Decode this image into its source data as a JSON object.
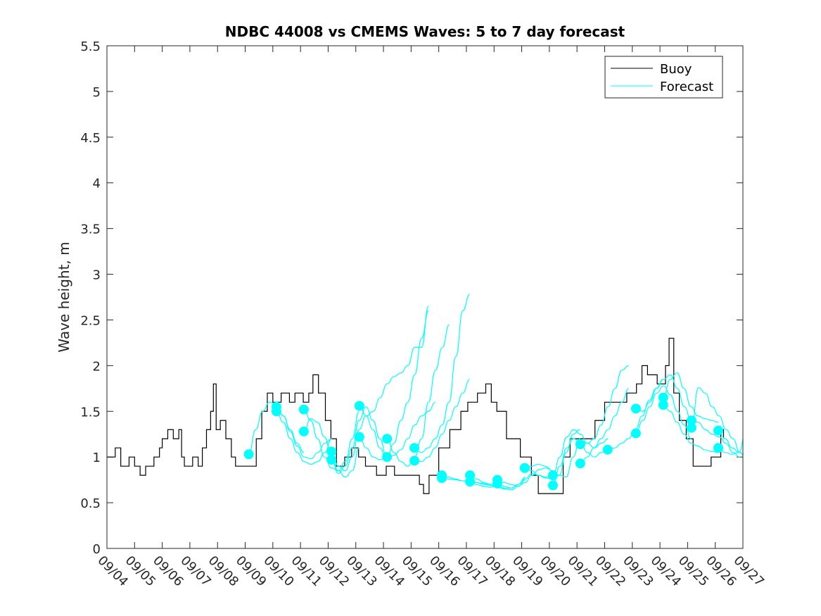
{
  "chart_data": {
    "type": "line",
    "title": "NDBC 44008 vs CMEMS Waves: 5 to 7 day forecast",
    "xlabel": "",
    "ylabel": "Wave height, m",
    "ylim": [
      0,
      5.5
    ],
    "yticks": [
      "0",
      "0.5",
      "1",
      "1.5",
      "2",
      "2.5",
      "3",
      "3.5",
      "4",
      "4.5",
      "5",
      "5.5"
    ],
    "xticks": [
      "09/04",
      "09/05",
      "09/06",
      "09/07",
      "09/08",
      "09/09",
      "09/10",
      "09/11",
      "09/12",
      "09/13",
      "09/14",
      "09/15",
      "09/16",
      "09/17",
      "09/18",
      "09/19",
      "09/20",
      "09/21",
      "09/22",
      "09/23",
      "09/24",
      "09/25",
      "09/26",
      "09/27"
    ],
    "x_unit": "days since 09/04",
    "legend": {
      "placement": "top-right",
      "entries": [
        "Buoy",
        "Forecast"
      ]
    },
    "colors": {
      "buoy": "#000000",
      "forecast": "#00ffff"
    },
    "buoy": [
      [
        0,
        1.0
      ],
      [
        0.3,
        1.1
      ],
      [
        0.5,
        0.9
      ],
      [
        0.8,
        1.0
      ],
      [
        1.0,
        0.9
      ],
      [
        1.2,
        0.8
      ],
      [
        1.4,
        0.9
      ],
      [
        1.7,
        1.0
      ],
      [
        1.9,
        1.1
      ],
      [
        2.0,
        1.2
      ],
      [
        2.2,
        1.3
      ],
      [
        2.4,
        1.2
      ],
      [
        2.6,
        1.3
      ],
      [
        2.7,
        1.0
      ],
      [
        2.8,
        0.9
      ],
      [
        3.1,
        1.0
      ],
      [
        3.3,
        0.9
      ],
      [
        3.45,
        1.1
      ],
      [
        3.6,
        1.3
      ],
      [
        3.75,
        1.5
      ],
      [
        3.85,
        1.8
      ],
      [
        3.95,
        1.3
      ],
      [
        4.1,
        1.4
      ],
      [
        4.3,
        1.2
      ],
      [
        4.5,
        1.0
      ],
      [
        4.65,
        0.9
      ],
      [
        5.3,
        0.9
      ],
      [
        5.4,
        1.2
      ],
      [
        5.6,
        1.5
      ],
      [
        5.8,
        1.7
      ],
      [
        6.0,
        1.6
      ],
      [
        6.3,
        1.7
      ],
      [
        6.6,
        1.6
      ],
      [
        6.8,
        1.7
      ],
      [
        7.1,
        1.6
      ],
      [
        7.3,
        1.7
      ],
      [
        7.45,
        1.9
      ],
      [
        7.65,
        1.7
      ],
      [
        7.9,
        1.4
      ],
      [
        8.1,
        1.2
      ],
      [
        8.3,
        0.9
      ],
      [
        8.6,
        1.0
      ],
      [
        8.85,
        1.1
      ],
      [
        9.1,
        1.0
      ],
      [
        9.35,
        0.9
      ],
      [
        9.75,
        0.8
      ],
      [
        10.1,
        0.9
      ],
      [
        10.4,
        0.8
      ],
      [
        10.9,
        0.8
      ],
      [
        11.3,
        0.7
      ],
      [
        11.45,
        0.6
      ],
      [
        11.65,
        0.8
      ],
      [
        12.0,
        1.1
      ],
      [
        12.4,
        1.3
      ],
      [
        12.8,
        1.5
      ],
      [
        13.05,
        1.6
      ],
      [
        13.4,
        1.7
      ],
      [
        13.7,
        1.8
      ],
      [
        13.9,
        1.6
      ],
      [
        14.1,
        1.5
      ],
      [
        14.45,
        1.2
      ],
      [
        14.95,
        1.0
      ],
      [
        15.35,
        0.8
      ],
      [
        15.6,
        0.6
      ],
      [
        16.35,
        0.6
      ],
      [
        16.5,
        1.0
      ],
      [
        16.75,
        1.2
      ],
      [
        17.25,
        1.2
      ],
      [
        17.65,
        1.4
      ],
      [
        18.0,
        1.6
      ],
      [
        18.4,
        1.6
      ],
      [
        18.8,
        1.7
      ],
      [
        19.15,
        1.8
      ],
      [
        19.35,
        2.0
      ],
      [
        19.55,
        1.9
      ],
      [
        19.9,
        1.8
      ],
      [
        20.2,
        2.0
      ],
      [
        20.33,
        2.3
      ],
      [
        20.5,
        1.7
      ],
      [
        20.7,
        1.4
      ],
      [
        20.95,
        1.2
      ],
      [
        21.2,
        0.9
      ],
      [
        21.6,
        0.9
      ],
      [
        21.85,
        1.0
      ],
      [
        22.2,
        1.3
      ],
      [
        22.3,
        1.2
      ]
    ],
    "forecast_step_days": 0.25,
    "forecasts": [
      {
        "start": 5.13,
        "values": [
          1.03,
          1.3,
          1.5,
          1.6,
          1.57,
          1.45,
          1.3,
          1.15,
          1.05
        ]
      },
      {
        "start": 6.13,
        "values": [
          1.55,
          1.45,
          1.28,
          1.12,
          1.0,
          0.98,
          1.05,
          1.15,
          1.2
        ]
      },
      {
        "start": 6.13,
        "values": [
          1.5,
          1.38,
          1.2,
          1.05,
          0.95,
          0.92,
          0.95,
          1.05,
          1.2
        ]
      },
      {
        "start": 7.12,
        "values": [
          1.52,
          1.4,
          1.2,
          1.0,
          0.88,
          0.85,
          0.95,
          1.2,
          1.5
        ]
      },
      {
        "start": 7.12,
        "values": [
          1.28,
          1.42,
          1.38,
          1.22,
          1.0,
          0.85,
          0.78,
          0.85,
          1.1
        ]
      },
      {
        "start": 8.12,
        "values": [
          1.06,
          0.9,
          0.85,
          1.0,
          1.3,
          1.45,
          1.3,
          1.1,
          0.95
        ]
      },
      {
        "start": 8.12,
        "values": [
          0.97,
          0.82,
          0.9,
          1.1,
          1.4,
          1.55,
          1.4,
          1.2,
          1.0
        ]
      },
      {
        "start": 9.13,
        "values": [
          1.56,
          1.45,
          1.5,
          1.65,
          1.8,
          1.88,
          1.92,
          2.0,
          2.2,
          2.2,
          2.65
        ]
      },
      {
        "start": 9.13,
        "values": [
          1.22,
          1.1,
          1.0,
          0.97,
          1.0,
          1.15,
          1.4,
          1.6,
          1.9,
          2.3,
          2.6
        ]
      },
      {
        "start": 10.13,
        "values": [
          1.2,
          1.05,
          0.95,
          0.9,
          1.0,
          1.2,
          1.6,
          1.95,
          2.2,
          2.45
        ]
      },
      {
        "start": 10.13,
        "values": [
          1.0,
          1.02,
          1.08,
          1.2,
          1.35,
          1.45,
          1.5,
          1.6
        ]
      },
      {
        "start": 11.12,
        "values": [
          1.1,
          1.05,
          1.1,
          1.2,
          1.35,
          1.6,
          2.1,
          2.6,
          2.78
        ]
      },
      {
        "start": 11.12,
        "values": [
          0.96,
          0.95,
          1.0,
          1.1,
          1.25,
          1.4,
          1.55,
          1.7,
          1.85
        ]
      },
      {
        "start": 12.11,
        "values": [
          0.8,
          0.78,
          0.76,
          0.74,
          0.72,
          0.7,
          0.68,
          0.67,
          0.68
        ]
      },
      {
        "start": 12.11,
        "values": [
          0.77,
          0.76,
          0.75,
          0.74,
          0.73,
          0.72,
          0.71,
          0.7,
          0.7
        ]
      },
      {
        "start": 13.13,
        "values": [
          0.8,
          0.76,
          0.72,
          0.7,
          0.68,
          0.66,
          0.66,
          0.7,
          0.78
        ]
      },
      {
        "start": 13.13,
        "values": [
          0.73,
          0.72,
          0.7,
          0.69,
          0.67,
          0.65,
          0.64,
          0.68,
          0.75
        ]
      },
      {
        "start": 14.12,
        "values": [
          0.75,
          0.72,
          0.7,
          0.68,
          0.72,
          0.8,
          0.86,
          0.88,
          0.85
        ]
      },
      {
        "start": 14.12,
        "values": [
          0.71,
          0.68,
          0.66,
          0.7,
          0.76,
          0.82,
          0.8,
          0.78,
          0.8
        ]
      },
      {
        "start": 15.11,
        "values": [
          0.88,
          0.85,
          0.8,
          0.77,
          0.76,
          0.8,
          1.05,
          1.25,
          1.3
        ]
      },
      {
        "start": 15.11,
        "values": [
          0.88,
          0.9,
          0.92,
          0.9,
          0.85,
          0.8,
          0.78,
          1.0,
          1.2
        ]
      },
      {
        "start": 16.13,
        "values": [
          0.8,
          1.0,
          1.22,
          1.3,
          1.25,
          1.15,
          1.1,
          1.15,
          1.2
        ]
      },
      {
        "start": 16.13,
        "values": [
          0.69,
          0.9,
          1.1,
          1.2,
          1.15,
          1.05,
          1.0,
          1.05,
          1.1
        ]
      },
      {
        "start": 17.12,
        "values": [
          1.14,
          1.15,
          1.2,
          1.35,
          1.55,
          1.75,
          1.95,
          2.0
        ]
      },
      {
        "start": 17.12,
        "values": [
          0.93,
          1.0,
          1.1,
          1.2,
          1.3,
          1.45,
          1.6,
          1.75
        ]
      },
      {
        "start": 18.11,
        "values": [
          1.08,
          1.1,
          1.15,
          1.2,
          1.3,
          1.45,
          1.62,
          1.75,
          1.85
        ]
      },
      {
        "start": 19.13,
        "values": [
          1.53,
          1.5,
          1.6,
          1.75,
          1.85,
          1.9,
          1.75,
          1.55,
          1.4
        ]
      },
      {
        "start": 19.13,
        "values": [
          1.26,
          1.4,
          1.55,
          1.7,
          1.78,
          1.68,
          1.5,
          1.35,
          1.2
        ]
      },
      {
        "start": 20.12,
        "values": [
          1.65,
          1.85,
          1.92,
          1.75,
          1.55,
          1.45,
          1.42,
          1.4,
          1.38
        ]
      },
      {
        "start": 20.12,
        "values": [
          1.57,
          1.5,
          1.38,
          1.25,
          1.15,
          1.12,
          1.08,
          1.06,
          1.05
        ]
      },
      {
        "start": 21.14,
        "values": [
          1.4,
          1.38,
          1.3,
          1.25,
          1.22,
          1.15,
          1.05,
          1.0
        ]
      },
      {
        "start": 21.14,
        "values": [
          1.32,
          1.76,
          1.7,
          1.55,
          1.45,
          1.3,
          1.2,
          1.05,
          0.95
        ]
      },
      {
        "start": 22.11,
        "values": [
          1.29,
          1.2,
          1.1,
          1.05,
          1.02,
          1.0,
          0.95,
          0.9,
          0.83
        ]
      },
      {
        "start": 22.11,
        "values": [
          1.1,
          1.05,
          1.03,
          1.05,
          1.3,
          1.45,
          1.8,
          1.95
        ]
      }
    ]
  }
}
